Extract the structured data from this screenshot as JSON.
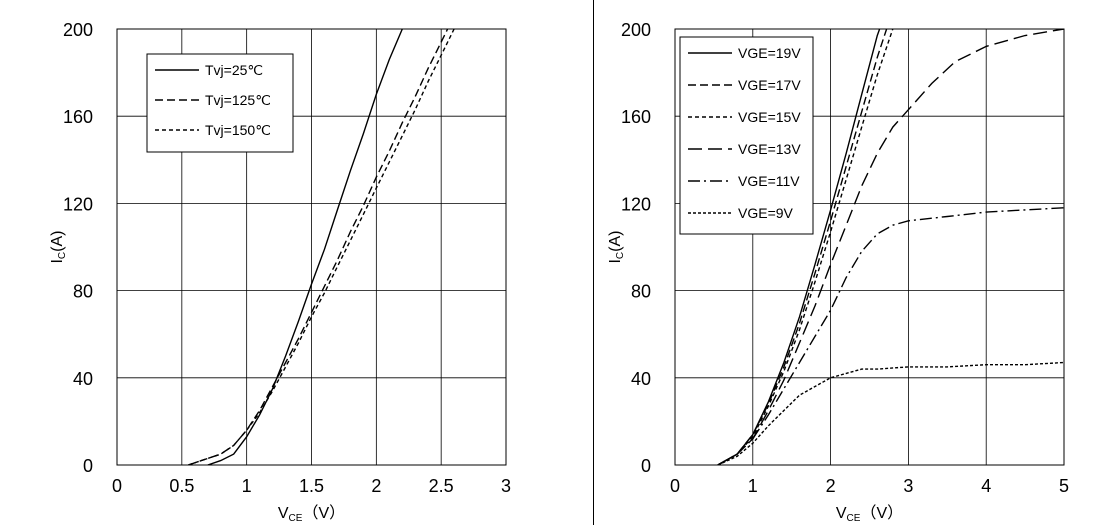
{
  "chart_data": [
    {
      "type": "line",
      "xlabel": "V",
      "xlabel_sub": "CE",
      "xlabel_unit": "（V）",
      "ylabel": "I",
      "ylabel_sub": "C",
      "ylabel_unit": "(A)",
      "xlim": [
        0,
        3
      ],
      "ylim": [
        0,
        200
      ],
      "xticks": [
        0,
        0.5,
        1,
        1.5,
        2,
        2.5,
        3
      ],
      "xtick_labels": [
        "0",
        "0.5",
        "1",
        "1.5",
        "2",
        "2.5",
        "3"
      ],
      "yticks": [
        0,
        40,
        80,
        120,
        160,
        200
      ],
      "ytick_labels": [
        "0",
        "40",
        "80",
        "120",
        "160",
        "200"
      ],
      "grid": true,
      "legend_position": "top-left",
      "series": [
        {
          "name": "Tvj=25℃",
          "style": "solid",
          "color": "#000000",
          "points": [
            [
              0.7,
              0
            ],
            [
              0.8,
              2
            ],
            [
              0.9,
              5
            ],
            [
              1.0,
              13
            ],
            [
              1.1,
              23
            ],
            [
              1.2,
              35
            ],
            [
              1.3,
              50
            ],
            [
              1.4,
              66
            ],
            [
              1.5,
              83
            ],
            [
              1.6,
              99
            ],
            [
              1.7,
              117
            ],
            [
              1.8,
              135
            ],
            [
              1.9,
              152
            ],
            [
              2.0,
              170
            ],
            [
              2.1,
              186
            ],
            [
              2.2,
              200
            ]
          ]
        },
        {
          "name": "Tvj=125℃",
          "style": "dashed",
          "color": "#000000",
          "points": [
            [
              0.55,
              0
            ],
            [
              0.65,
              2
            ],
            [
              0.8,
              5
            ],
            [
              0.9,
              9
            ],
            [
              1.0,
              16
            ],
            [
              1.1,
              25
            ],
            [
              1.2,
              36
            ],
            [
              1.3,
              47
            ],
            [
              1.4,
              58
            ],
            [
              1.5,
              70
            ],
            [
              1.6,
              82
            ],
            [
              1.7,
              94
            ],
            [
              1.8,
              107
            ],
            [
              1.9,
              119
            ],
            [
              2.0,
              132
            ],
            [
              2.1,
              144
            ],
            [
              2.2,
              157
            ],
            [
              2.3,
              169
            ],
            [
              2.4,
              182
            ],
            [
              2.5,
              194
            ],
            [
              2.55,
              200
            ]
          ]
        },
        {
          "name": "Tvj=150℃",
          "style": "dotted",
          "color": "#000000",
          "points": [
            [
              0.55,
              0
            ],
            [
              0.65,
              2
            ],
            [
              0.8,
              5
            ],
            [
              0.9,
              9
            ],
            [
              1.0,
              16
            ],
            [
              1.1,
              24
            ],
            [
              1.2,
              34
            ],
            [
              1.3,
              45
            ],
            [
              1.4,
              56
            ],
            [
              1.5,
              68
            ],
            [
              1.6,
              79
            ],
            [
              1.7,
              91
            ],
            [
              1.8,
              103
            ],
            [
              1.9,
              115
            ],
            [
              2.0,
              127
            ],
            [
              2.1,
              139
            ],
            [
              2.2,
              151
            ],
            [
              2.3,
              163
            ],
            [
              2.4,
              176
            ],
            [
              2.5,
              188
            ],
            [
              2.6,
              200
            ]
          ]
        }
      ]
    },
    {
      "type": "line",
      "xlabel": "V",
      "xlabel_sub": "CE",
      "xlabel_unit": "（V）",
      "ylabel": "I",
      "ylabel_sub": "C",
      "ylabel_unit": "(A)",
      "xlim": [
        0,
        5
      ],
      "ylim": [
        0,
        200
      ],
      "xticks": [
        0,
        1,
        2,
        3,
        4,
        5
      ],
      "xtick_labels": [
        "0",
        "1",
        "2",
        "3",
        "4",
        "5"
      ],
      "yticks": [
        0,
        40,
        80,
        120,
        160,
        200
      ],
      "ytick_labels": [
        "0",
        "40",
        "80",
        "120",
        "160",
        "200"
      ],
      "grid": true,
      "legend_position": "top-left",
      "series": [
        {
          "name": "VGE=19V",
          "style": "solid",
          "color": "#000000",
          "points": [
            [
              0.55,
              0
            ],
            [
              0.8,
              5
            ],
            [
              1.0,
              14
            ],
            [
              1.2,
              29
            ],
            [
              1.4,
              47
            ],
            [
              1.6,
              68
            ],
            [
              1.8,
              92
            ],
            [
              2.0,
              117
            ],
            [
              2.2,
              143
            ],
            [
              2.4,
              170
            ],
            [
              2.6,
              197
            ],
            [
              2.63,
              200
            ]
          ]
        },
        {
          "name": "VGE=17V",
          "style": "dashed",
          "color": "#000000",
          "points": [
            [
              0.55,
              0
            ],
            [
              0.8,
              5
            ],
            [
              1.0,
              14
            ],
            [
              1.2,
              28
            ],
            [
              1.4,
              45
            ],
            [
              1.6,
              65
            ],
            [
              1.8,
              88
            ],
            [
              2.0,
              112
            ],
            [
              2.2,
              137
            ],
            [
              2.4,
              162
            ],
            [
              2.6,
              187
            ],
            [
              2.72,
              200
            ]
          ]
        },
        {
          "name": "VGE=15V",
          "style": "dotted",
          "color": "#000000",
          "points": [
            [
              0.55,
              0
            ],
            [
              0.8,
              5
            ],
            [
              1.0,
              13
            ],
            [
              1.2,
              27
            ],
            [
              1.4,
              43
            ],
            [
              1.6,
              62
            ],
            [
              1.8,
              84
            ],
            [
              2.0,
              107
            ],
            [
              2.2,
              131
            ],
            [
              2.4,
              155
            ],
            [
              2.6,
              179
            ],
            [
              2.8,
              200
            ]
          ]
        },
        {
          "name": "VGE=13V",
          "style": "longdash",
          "color": "#000000",
          "points": [
            [
              0.55,
              0
            ],
            [
              0.8,
              5
            ],
            [
              1.0,
              12
            ],
            [
              1.2,
              25
            ],
            [
              1.4,
              39
            ],
            [
              1.6,
              56
            ],
            [
              1.8,
              73
            ],
            [
              2.0,
              92
            ],
            [
              2.2,
              110
            ],
            [
              2.4,
              128
            ],
            [
              2.6,
              143
            ],
            [
              2.8,
              155
            ],
            [
              3.0,
              163
            ],
            [
              3.3,
              175
            ],
            [
              3.6,
              185
            ],
            [
              4.0,
              192
            ],
            [
              4.5,
              197
            ],
            [
              5.0,
              200
            ]
          ]
        },
        {
          "name": "VGE=11V",
          "style": "dashdot",
          "color": "#000000",
          "points": [
            [
              0.55,
              0
            ],
            [
              0.8,
              5
            ],
            [
              1.0,
              12
            ],
            [
              1.2,
              23
            ],
            [
              1.4,
              35
            ],
            [
              1.6,
              47
            ],
            [
              1.8,
              59
            ],
            [
              2.0,
              71
            ],
            [
              2.2,
              86
            ],
            [
              2.4,
              98
            ],
            [
              2.6,
              106
            ],
            [
              2.8,
              110
            ],
            [
              3.0,
              112
            ],
            [
              3.5,
              114
            ],
            [
              4.0,
              116
            ],
            [
              4.5,
              117
            ],
            [
              5.0,
              118
            ]
          ]
        },
        {
          "name": "VGE=9V",
          "style": "shortdash",
          "color": "#000000",
          "points": [
            [
              0.55,
              0
            ],
            [
              0.8,
              4
            ],
            [
              1.0,
              10
            ],
            [
              1.2,
              18
            ],
            [
              1.4,
              25
            ],
            [
              1.6,
              32
            ],
            [
              1.8,
              36
            ],
            [
              2.0,
              40
            ],
            [
              2.2,
              42
            ],
            [
              2.4,
              44
            ],
            [
              2.6,
              44
            ],
            [
              3.0,
              45
            ],
            [
              3.5,
              45
            ],
            [
              4.0,
              46
            ],
            [
              4.5,
              46
            ],
            [
              5.0,
              47
            ]
          ]
        }
      ]
    }
  ]
}
